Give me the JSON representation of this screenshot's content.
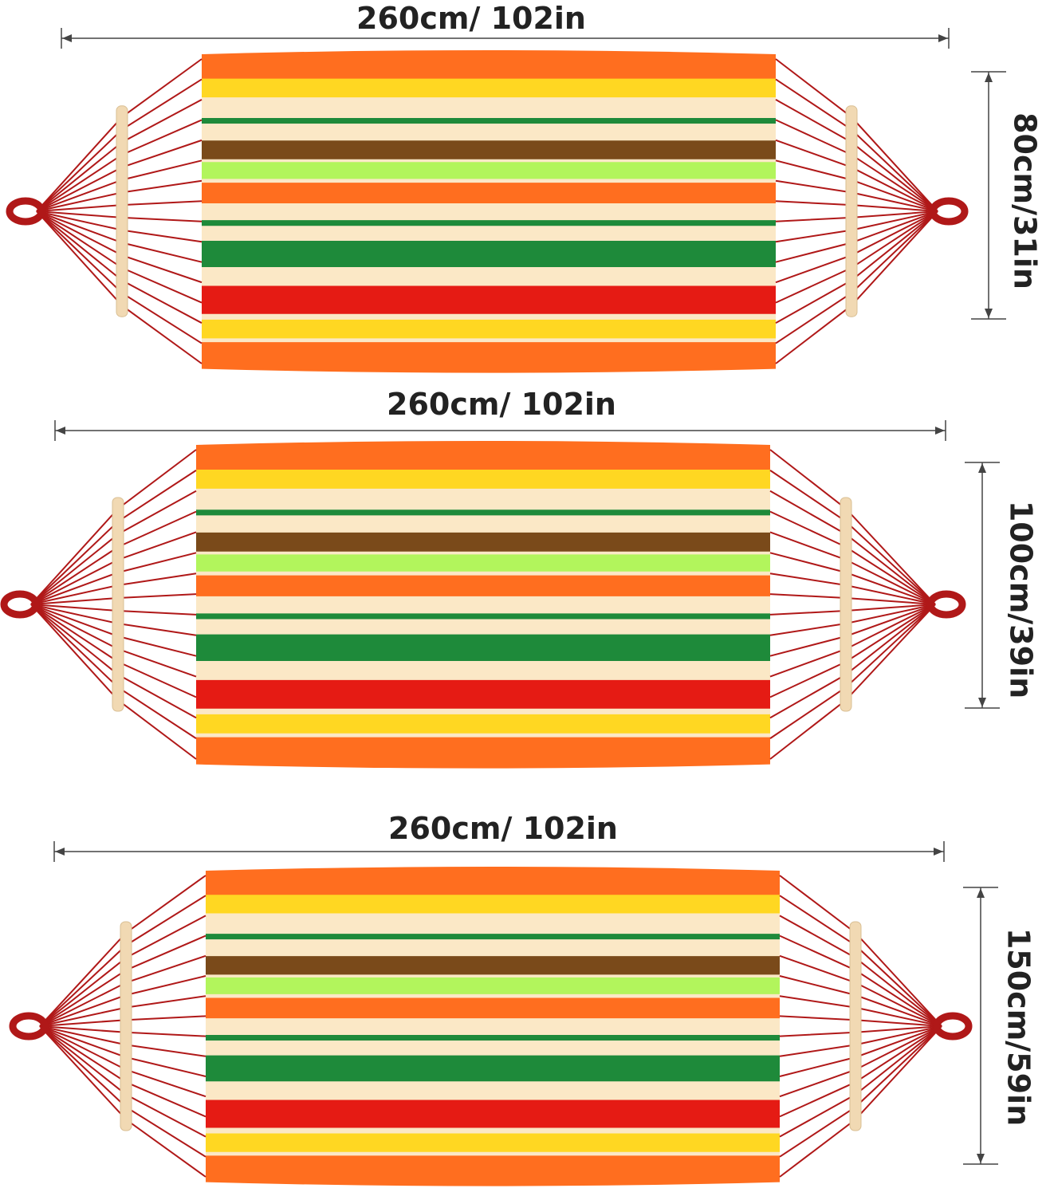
{
  "hammocks": [
    {
      "width_label": "260cm/ 102in",
      "height_label": "80cm/31in"
    },
    {
      "width_label": "260cm/ 102in",
      "height_label": "100cm/39in"
    },
    {
      "width_label": "260cm/ 102in",
      "height_label": "150cm/59in"
    }
  ],
  "colors": {
    "orange": "#FF6E1F",
    "yellow": "#FFD722",
    "cream": "#FBE8C6",
    "green": "#1E8A3A",
    "brown": "#7A4A1A",
    "lime": "#B2F55C",
    "red": "#E51B14",
    "rope": "#B01818",
    "spreader_bar": "#F1D9B3",
    "dimension_line": "#444444"
  }
}
